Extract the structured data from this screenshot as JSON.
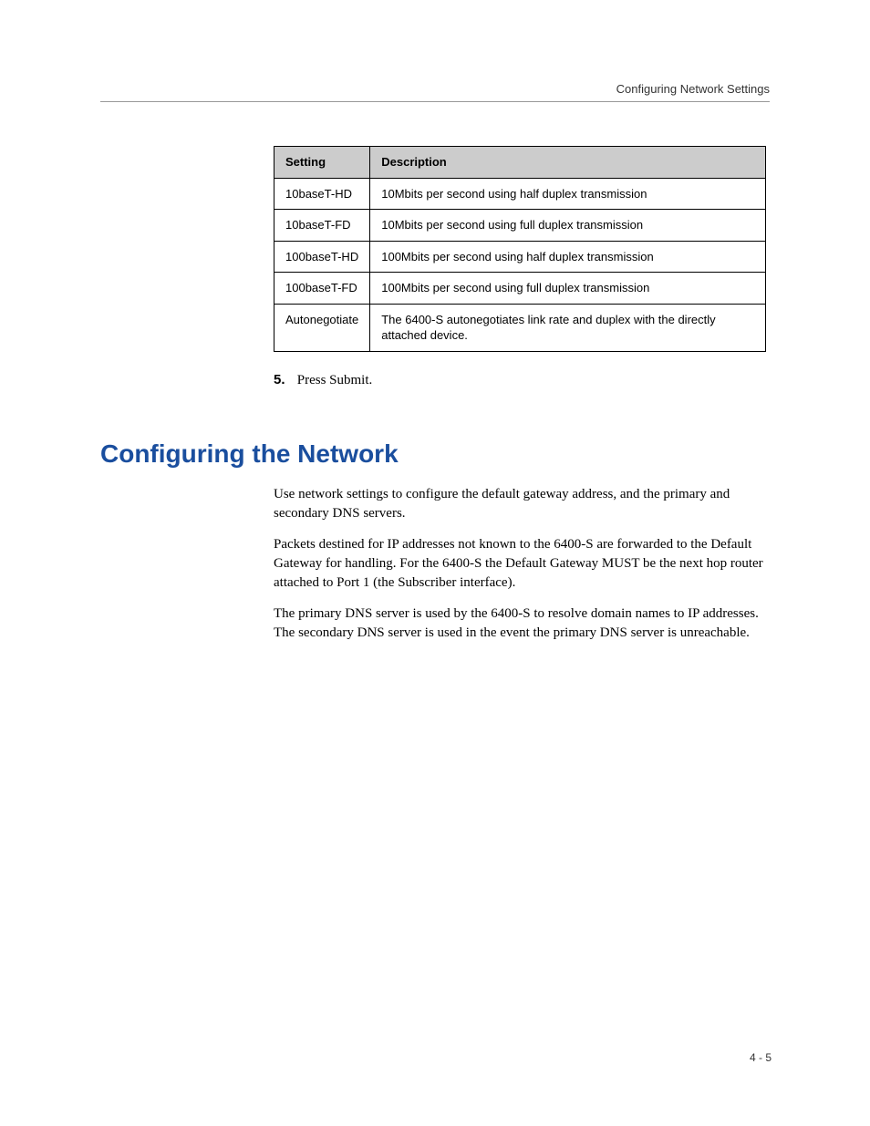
{
  "header": {
    "breadcrumb": "Configuring Network Settings"
  },
  "table": {
    "col1_header": "Setting",
    "col2_header": "Description",
    "rows": [
      {
        "setting": "10baseT-HD",
        "desc": "10Mbits per second using half duplex transmission"
      },
      {
        "setting": "10baseT-FD",
        "desc": "10Mbits per second using full duplex transmission"
      },
      {
        "setting": "100baseT-HD",
        "desc": "100Mbits per second using half duplex transmission"
      },
      {
        "setting": "100baseT-FD",
        "desc": "100Mbits per second using full duplex transmission"
      },
      {
        "setting": "Autonegotiate",
        "desc": "The 6400-S autonegotiates link rate and duplex with the directly attached device."
      }
    ]
  },
  "step": {
    "number": "5.",
    "text": "Press Submit."
  },
  "section": {
    "title": "Configuring the Network",
    "para1": "Use network settings to configure the default gateway address, and the primary and secondary DNS servers.",
    "para2": "Packets destined for IP addresses not known to the 6400-S are forwarded to the Default Gateway for handling.  For the 6400-S the Default Gateway MUST be the next hop router attached to Port 1 (the Subscriber interface).",
    "para3": "The primary DNS server is used by the 6400-S to resolve domain names to IP addresses. The secondary DNS server is used in the event the primary DNS server is unreachable."
  },
  "footer": {
    "page": "4 - 5"
  },
  "style": {
    "heading_color": "#1a4e9e",
    "table_header_bg": "#cccccc",
    "body_bg": "#ffffff",
    "rule_color": "#999999"
  }
}
